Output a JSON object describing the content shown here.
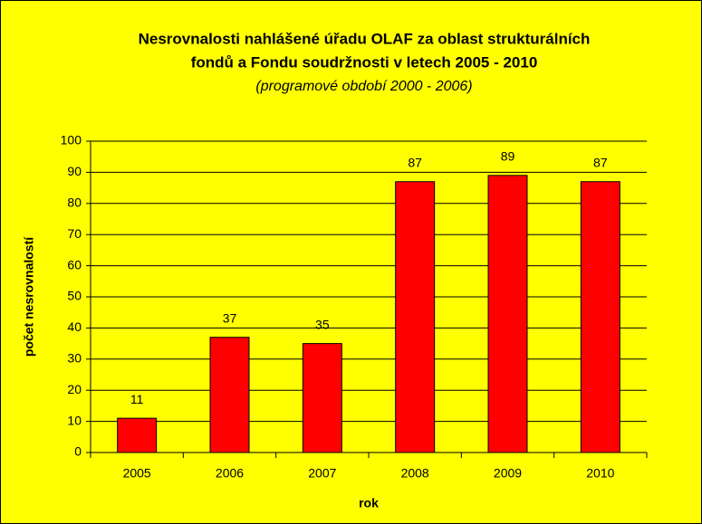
{
  "chart_data": {
    "type": "bar",
    "title": [
      "Nesrovnalosti nahlášené úřadu OLAF za oblast strukturálních",
      "fondů a Fondu soudržnosti v letech 2005 - 2010"
    ],
    "subtitle": "(programové období 2000 - 2006)",
    "x_label": "rok",
    "y_label": "počet nesrovnalostí",
    "categories": [
      "2005",
      "2006",
      "2007",
      "2008",
      "2009",
      "2010"
    ],
    "values": [
      11,
      37,
      35,
      87,
      89,
      87
    ],
    "color": "#ff0000",
    "ylim": [
      0,
      100
    ],
    "yticks": [
      0,
      10,
      20,
      30,
      40,
      50,
      60,
      70,
      80,
      90,
      100
    ],
    "grid": true
  }
}
